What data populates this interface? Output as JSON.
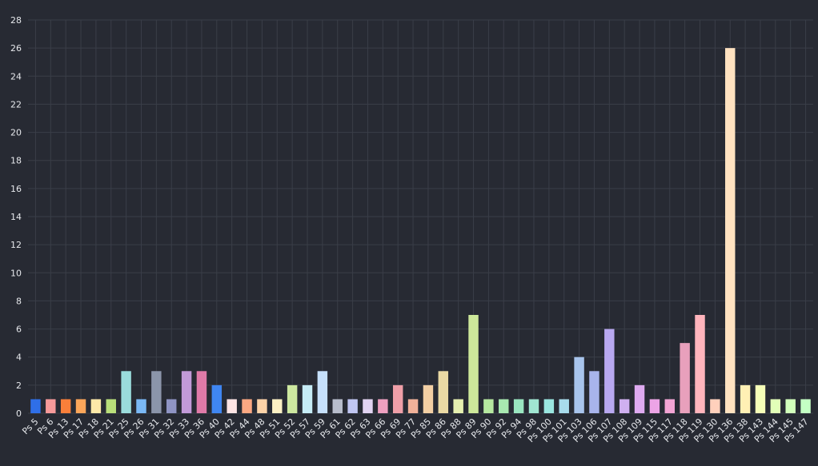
{
  "chart_data": {
    "type": "bar",
    "title": "",
    "xlabel": "",
    "ylabel": "",
    "ylim": [
      0,
      28
    ],
    "yticks": [
      0,
      2,
      4,
      6,
      8,
      10,
      12,
      14,
      16,
      18,
      20,
      22,
      24,
      26,
      28
    ],
    "grid": true,
    "legend": "none",
    "categories": [
      "Ps 5",
      "Ps 6",
      "Ps 13",
      "Ps 17",
      "Ps 18",
      "Ps 21",
      "Ps 25",
      "Ps 26",
      "Ps 31",
      "Ps 32",
      "Ps 33",
      "Ps 36",
      "Ps 40",
      "Ps 42",
      "Ps 44",
      "Ps 48",
      "Ps 51",
      "Ps 52",
      "Ps 57",
      "Ps 59",
      "Ps 61",
      "Ps 62",
      "Ps 63",
      "Ps 66",
      "Ps 69",
      "Ps 77",
      "Ps 85",
      "Ps 86",
      "Ps 88",
      "Ps 89",
      "Ps 90",
      "Ps 92",
      "Ps 94",
      "Ps 98",
      "Ps 100",
      "Ps 101",
      "Ps 103",
      "Ps 106",
      "Ps 107",
      "Ps 108",
      "Ps 109",
      "Ps 115",
      "Ps 117",
      "Ps 118",
      "Ps 119",
      "Ps 130",
      "Ps 136",
      "Ps 138",
      "Ps 143",
      "Ps 144",
      "Ps 145",
      "Ps 147"
    ],
    "values": [
      1,
      1,
      1,
      1,
      1,
      1,
      3,
      1,
      3,
      1,
      3,
      3,
      2,
      1,
      1,
      1,
      1,
      2,
      2,
      3,
      1,
      1,
      1,
      1,
      2,
      1,
      2,
      3,
      1,
      7,
      1,
      1,
      1,
      1,
      1,
      1,
      4,
      3,
      6,
      1,
      2,
      1,
      1,
      5,
      7,
      1,
      26,
      2,
      2,
      1,
      1,
      1
    ],
    "colors": [
      "#2f6fe8",
      "#f79a9a",
      "#f97f3a",
      "#fca65a",
      "#fde9a8",
      "#b9df7a",
      "#9adcdc",
      "#7ab8f5",
      "#8b95aa",
      "#8f94c4",
      "#c29ad8",
      "#e07aa8",
      "#3f86f2",
      "#fde4e4",
      "#fca882",
      "#fdd3a8",
      "#fdf1c4",
      "#cde8a0",
      "#c6ecf6",
      "#c6e0fb",
      "#b8bdcc",
      "#c0c6f2",
      "#e2d4f2",
      "#eea0c0",
      "#ef9fa8",
      "#f2b29a",
      "#f2cfa4",
      "#ead9a4",
      "#e6f0b0",
      "#cde89a",
      "#b6e8a0",
      "#a8e8b0",
      "#9ae6c0",
      "#a0e6d2",
      "#9ae6e0",
      "#a8dcec",
      "#a8c4ec",
      "#a8b4ec",
      "#b8a8f0",
      "#cfb0f0",
      "#deaaf0",
      "#eca4e6",
      "#f2a4d4",
      "#e8a0bc",
      "#ffb4bc",
      "#ffd0bc",
      "#ffe2c0",
      "#fff0b4",
      "#f6ffb8",
      "#e2ffb8",
      "#d2ffbc",
      "#c4ffc4"
    ]
  }
}
